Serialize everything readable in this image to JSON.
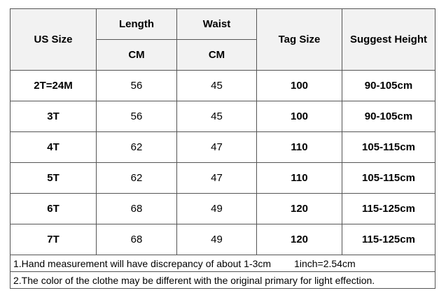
{
  "header": {
    "us_size": "US Size",
    "length": "Length",
    "length_unit": "CM",
    "waist": "Waist",
    "waist_unit": "CM",
    "tag_size": "Tag Size",
    "suggest_height": "Suggest Height"
  },
  "table": {
    "rows": [
      [
        "2T=24M",
        56,
        45,
        100,
        "90-105cm"
      ],
      [
        "3T",
        56,
        45,
        100,
        "90-105cm"
      ],
      [
        "4T",
        62,
        47,
        110,
        "105-115cm"
      ],
      [
        "5T",
        62,
        47,
        110,
        "105-115cm"
      ],
      [
        "6T",
        68,
        49,
        120,
        "115-125cm"
      ],
      [
        "7T",
        68,
        49,
        120,
        "115-125cm"
      ]
    ]
  },
  "notes": [
    {
      "text": "1.Hand measurement will have discrepancy of about 1-3cm",
      "extra": "1inch=2.54cm"
    },
    {
      "text": "2.The color of the clothe may be different with the original primary for light effection."
    }
  ]
}
